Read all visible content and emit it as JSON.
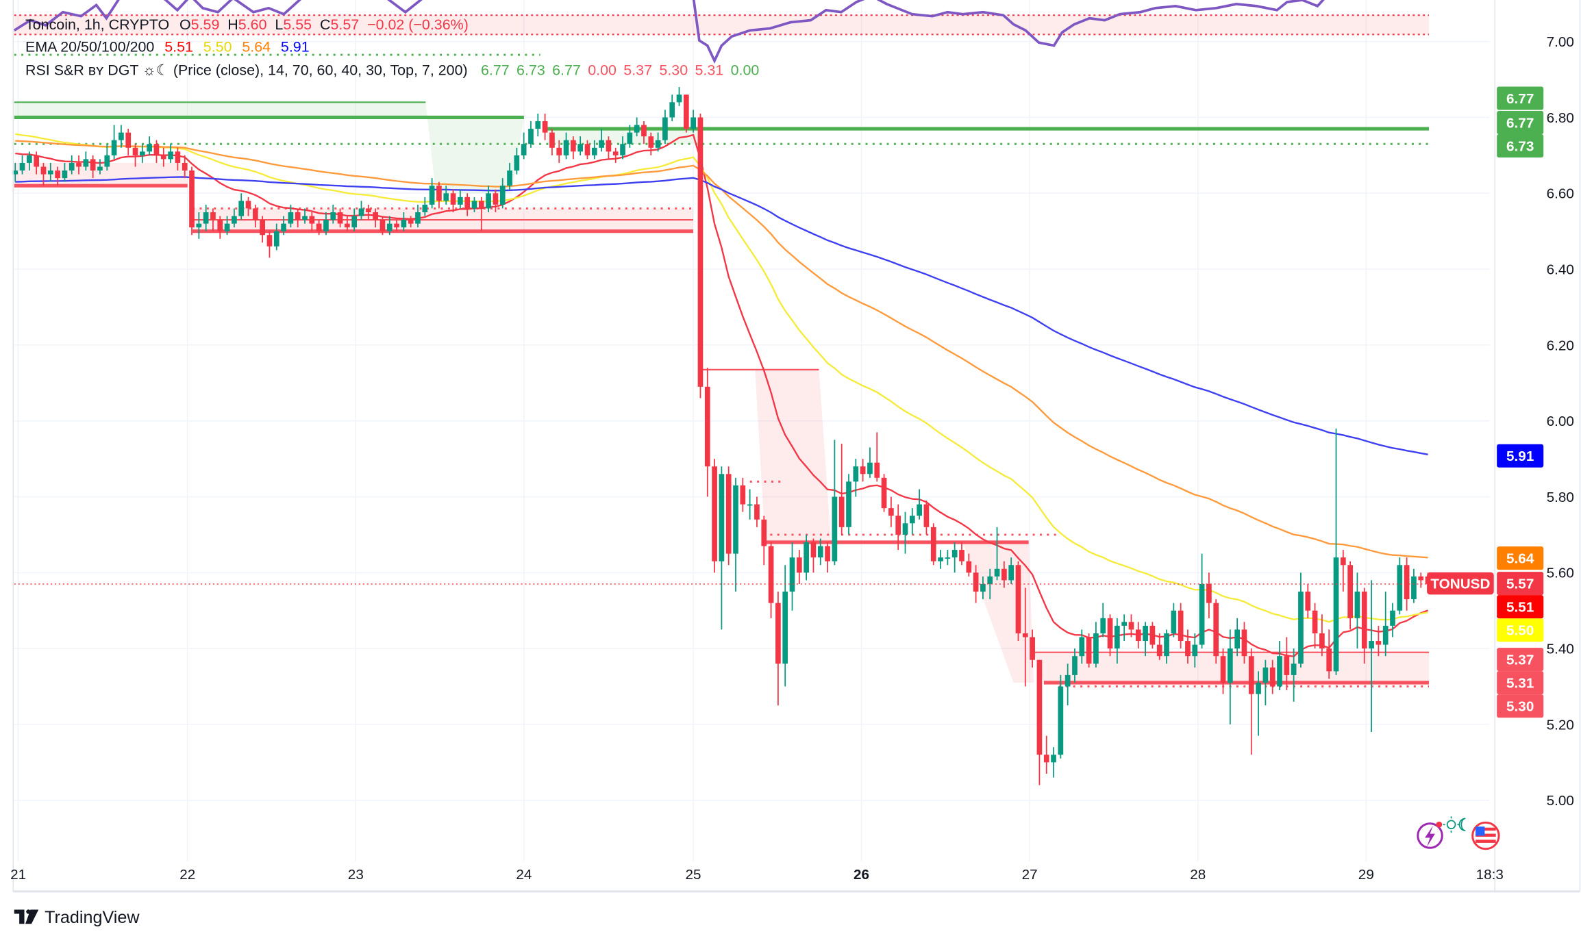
{
  "legend": {
    "symbol": "Toncoin, 1h, CRYPTO",
    "o_label": "O",
    "o": "5.59",
    "h_label": "H",
    "h": "5.60",
    "l_label": "L",
    "l": "5.55",
    "c_label": "C",
    "c": "5.57",
    "change": "−0.02 (−0.36%)"
  },
  "ema_legend": {
    "label": "EMA 20/50/100/200",
    "values": [
      {
        "v": "5.51",
        "color": "#ff0000"
      },
      {
        "v": "5.50",
        "color": "#e6d800"
      },
      {
        "v": "5.64",
        "color": "#ff7f00"
      },
      {
        "v": "5.91",
        "color": "#0000ff"
      }
    ]
  },
  "rsi_legend": {
    "label": "RSI S&R ʙʏ DGT ☼☾ (Price (close), 14, 70, 60, 40, 30, Top, 7, 200)",
    "values": [
      {
        "v": "6.77",
        "color": "#4caf50"
      },
      {
        "v": "6.73",
        "color": "#4caf50"
      },
      {
        "v": "6.77",
        "color": "#4caf50"
      },
      {
        "v": "0.00",
        "color": "#f7525f"
      },
      {
        "v": "5.37",
        "color": "#f7525f"
      },
      {
        "v": "5.30",
        "color": "#f7525f"
      },
      {
        "v": "5.31",
        "color": "#f7525f"
      },
      {
        "v": "0.00",
        "color": "#4caf50"
      }
    ]
  },
  "price_axis": {
    "ticks": [
      "7.00",
      "6.80",
      "6.60",
      "6.40",
      "6.20",
      "6.00",
      "5.80",
      "5.60",
      "5.40",
      "5.20",
      "5.00"
    ]
  },
  "badges": [
    {
      "v": "6.77",
      "bg": "#4caf50",
      "fg": "#ffffff"
    },
    {
      "v": "6.77",
      "bg": "#4caf50",
      "fg": "#ffffff"
    },
    {
      "v": "6.73",
      "bg": "#4caf50",
      "fg": "#ffffff"
    },
    {
      "v": "5.91",
      "bg": "#0000ff",
      "fg": "#ffffff"
    },
    {
      "v": "5.64",
      "bg": "#ff7f00",
      "fg": "#ffffff"
    },
    {
      "v": "5.57",
      "bg": "#f23645",
      "fg": "#ffffff"
    },
    {
      "v": "5.51",
      "bg": "#ff0000",
      "fg": "#ffffff"
    },
    {
      "v": "5.50",
      "bg": "#ffff00",
      "fg": "#131722"
    },
    {
      "v": "5.37",
      "bg": "#f7525f",
      "fg": "#ffffff"
    },
    {
      "v": "5.31",
      "bg": "#f7525f",
      "fg": "#ffffff"
    },
    {
      "v": "5.30",
      "bg": "#f7525f",
      "fg": "#ffffff"
    }
  ],
  "symbol_tag": "TONUSD",
  "time_axis": [
    "21",
    "22",
    "23",
    "24",
    "25",
    "26",
    "27",
    "28",
    "29",
    "18:3"
  ],
  "branding": "TradingView",
  "icons": [
    "lightning-icon",
    "sun-moon-icon",
    "us-flag-icon"
  ],
  "colors": {
    "up": "#089981",
    "down": "#f23645",
    "rsi": "#7e57c2",
    "support": "#f7525f",
    "resistance": "#4caf50"
  },
  "sr_levels": [
    {
      "price": 6.84,
      "color": "#4caf50",
      "style": "solid"
    },
    {
      "price": 6.8,
      "color": "#4caf50",
      "style": "thick"
    },
    {
      "price": 6.77,
      "color": "#4caf50",
      "style": "thick"
    },
    {
      "price": 6.73,
      "color": "#4caf50",
      "style": "dotted"
    },
    {
      "price": 6.965,
      "color": "#4caf50",
      "style": "dotted"
    },
    {
      "price": 6.62,
      "color": "#f7525f",
      "style": "thick"
    },
    {
      "price": 6.56,
      "color": "#f7525f",
      "style": "dotted"
    },
    {
      "price": 6.53,
      "color": "#f7525f",
      "style": "solid"
    },
    {
      "price": 6.5,
      "color": "#f7525f",
      "style": "thick"
    },
    {
      "price": 6.135,
      "color": "#f7525f",
      "style": "solid"
    },
    {
      "price": 5.84,
      "color": "#f7525f",
      "style": "dotted"
    },
    {
      "price": 5.7,
      "color": "#f7525f",
      "style": "dotted"
    },
    {
      "price": 5.68,
      "color": "#f7525f",
      "style": "thick"
    },
    {
      "price": 5.39,
      "color": "#f7525f",
      "style": "solid"
    },
    {
      "price": 5.31,
      "color": "#f7525f",
      "style": "thick"
    },
    {
      "price": 5.3,
      "color": "#f7525f",
      "style": "dotted"
    }
  ],
  "chart_data": {
    "type": "candlestick",
    "timeframe": "1h",
    "symbol": "TONUSD",
    "ylim": [
      4.85,
      7.1
    ],
    "yticks": [
      7.0,
      6.8,
      6.6,
      6.4,
      6.2,
      6.0,
      5.8,
      5.6,
      5.4,
      5.2,
      5.0
    ],
    "xticks": [
      "21",
      "22",
      "23",
      "24",
      "25",
      "26",
      "27",
      "28",
      "29",
      "18:3"
    ],
    "grid": true,
    "last_price": 5.57,
    "ema_periods": [
      20,
      50,
      100,
      200
    ],
    "ema_last": [
      5.51,
      5.5,
      5.64,
      5.91
    ],
    "candles_ohlc": [
      [
        6.65,
        6.68,
        6.63,
        6.66
      ],
      [
        6.66,
        6.7,
        6.65,
        6.68
      ],
      [
        6.68,
        6.71,
        6.66,
        6.7
      ],
      [
        6.7,
        6.71,
        6.65,
        6.67
      ],
      [
        6.67,
        6.68,
        6.62,
        6.65
      ],
      [
        6.65,
        6.68,
        6.63,
        6.66
      ],
      [
        6.66,
        6.67,
        6.62,
        6.64
      ],
      [
        6.64,
        6.68,
        6.63,
        6.66
      ],
      [
        6.66,
        6.7,
        6.65,
        6.68
      ],
      [
        6.68,
        6.7,
        6.65,
        6.67
      ],
      [
        6.67,
        6.71,
        6.66,
        6.69
      ],
      [
        6.69,
        6.7,
        6.64,
        6.66
      ],
      [
        6.66,
        6.69,
        6.65,
        6.67
      ],
      [
        6.67,
        6.73,
        6.66,
        6.7
      ],
      [
        6.7,
        6.78,
        6.69,
        6.74
      ],
      [
        6.74,
        6.78,
        6.72,
        6.76
      ],
      [
        6.76,
        6.77,
        6.7,
        6.72
      ],
      [
        6.72,
        6.73,
        6.67,
        6.7
      ],
      [
        6.7,
        6.73,
        6.68,
        6.71
      ],
      [
        6.71,
        6.75,
        6.7,
        6.73
      ],
      [
        6.73,
        6.74,
        6.68,
        6.7
      ],
      [
        6.7,
        6.72,
        6.67,
        6.69
      ],
      [
        6.69,
        6.73,
        6.68,
        6.71
      ],
      [
        6.71,
        6.72,
        6.66,
        6.68
      ],
      [
        6.68,
        6.7,
        6.64,
        6.66
      ],
      [
        6.66,
        6.67,
        6.49,
        6.51
      ],
      [
        6.51,
        6.55,
        6.48,
        6.52
      ],
      [
        6.52,
        6.57,
        6.5,
        6.55
      ],
      [
        6.55,
        6.56,
        6.5,
        6.53
      ],
      [
        6.53,
        6.54,
        6.48,
        6.5
      ],
      [
        6.5,
        6.54,
        6.49,
        6.52
      ],
      [
        6.52,
        6.56,
        6.51,
        6.54
      ],
      [
        6.54,
        6.6,
        6.53,
        6.58
      ],
      [
        6.58,
        6.59,
        6.54,
        6.56
      ],
      [
        6.56,
        6.57,
        6.51,
        6.53
      ],
      [
        6.53,
        6.54,
        6.47,
        6.49
      ],
      [
        6.49,
        6.5,
        6.43,
        6.46
      ],
      [
        6.46,
        6.52,
        6.45,
        6.5
      ],
      [
        6.5,
        6.54,
        6.49,
        6.52
      ],
      [
        6.52,
        6.57,
        6.51,
        6.55
      ],
      [
        6.55,
        6.56,
        6.51,
        6.53
      ],
      [
        6.53,
        6.56,
        6.52,
        6.54
      ],
      [
        6.54,
        6.55,
        6.5,
        6.52
      ],
      [
        6.52,
        6.53,
        6.49,
        6.5
      ],
      [
        6.5,
        6.55,
        6.49,
        6.53
      ],
      [
        6.53,
        6.57,
        6.52,
        6.55
      ],
      [
        6.55,
        6.56,
        6.51,
        6.52
      ],
      [
        6.52,
        6.54,
        6.5,
        6.51
      ],
      [
        6.51,
        6.56,
        6.5,
        6.54
      ],
      [
        6.54,
        6.58,
        6.53,
        6.56
      ],
      [
        6.56,
        6.57,
        6.53,
        6.55
      ],
      [
        6.55,
        6.56,
        6.51,
        6.53
      ],
      [
        6.53,
        6.54,
        6.49,
        6.5
      ],
      [
        6.5,
        6.54,
        6.49,
        6.52
      ],
      [
        6.52,
        6.53,
        6.5,
        6.51
      ],
      [
        6.51,
        6.55,
        6.5,
        6.53
      ],
      [
        6.53,
        6.54,
        6.51,
        6.52
      ],
      [
        6.52,
        6.57,
        6.51,
        6.55
      ],
      [
        6.55,
        6.59,
        6.54,
        6.57
      ],
      [
        6.57,
        6.64,
        6.56,
        6.62
      ],
      [
        6.62,
        6.63,
        6.56,
        6.58
      ],
      [
        6.58,
        6.62,
        6.57,
        6.6
      ],
      [
        6.6,
        6.61,
        6.55,
        6.57
      ],
      [
        6.57,
        6.61,
        6.56,
        6.59
      ],
      [
        6.59,
        6.6,
        6.54,
        6.56
      ],
      [
        6.56,
        6.59,
        6.55,
        6.58
      ],
      [
        6.58,
        6.59,
        6.5,
        6.56
      ],
      [
        6.56,
        6.62,
        6.55,
        6.6
      ],
      [
        6.6,
        6.61,
        6.55,
        6.57
      ],
      [
        6.57,
        6.64,
        6.56,
        6.62
      ],
      [
        6.62,
        6.68,
        6.61,
        6.66
      ],
      [
        6.66,
        6.72,
        6.65,
        6.7
      ],
      [
        6.7,
        6.76,
        6.69,
        6.73
      ],
      [
        6.73,
        6.79,
        6.72,
        6.77
      ],
      [
        6.77,
        6.81,
        6.75,
        6.79
      ],
      [
        6.79,
        6.81,
        6.74,
        6.76
      ],
      [
        6.76,
        6.77,
        6.7,
        6.72
      ],
      [
        6.72,
        6.74,
        6.68,
        6.7
      ],
      [
        6.7,
        6.76,
        6.69,
        6.74
      ],
      [
        6.74,
        6.75,
        6.69,
        6.71
      ],
      [
        6.71,
        6.75,
        6.7,
        6.73
      ],
      [
        6.73,
        6.74,
        6.69,
        6.7
      ],
      [
        6.7,
        6.74,
        6.69,
        6.72
      ],
      [
        6.72,
        6.77,
        6.71,
        6.74
      ],
      [
        6.74,
        6.75,
        6.69,
        6.71
      ],
      [
        6.71,
        6.72,
        6.68,
        6.7
      ],
      [
        6.7,
        6.75,
        6.69,
        6.73
      ],
      [
        6.73,
        6.78,
        6.72,
        6.76
      ],
      [
        6.76,
        6.8,
        6.75,
        6.78
      ],
      [
        6.78,
        6.79,
        6.73,
        6.75
      ],
      [
        6.75,
        6.76,
        6.7,
        6.72
      ],
      [
        6.72,
        6.76,
        6.71,
        6.74
      ],
      [
        6.74,
        6.82,
        6.73,
        6.8
      ],
      [
        6.8,
        6.86,
        6.79,
        6.84
      ],
      [
        6.84,
        6.88,
        6.83,
        6.86
      ],
      [
        6.86,
        6.86,
        6.76,
        6.77
      ],
      [
        6.77,
        6.82,
        6.76,
        6.8
      ],
      [
        6.8,
        6.81,
        6.06,
        6.09
      ],
      [
        6.09,
        6.14,
        5.8,
        5.88
      ],
      [
        5.88,
        5.9,
        5.6,
        5.63
      ],
      [
        5.63,
        5.88,
        5.45,
        5.86
      ],
      [
        5.86,
        5.88,
        5.62,
        5.65
      ],
      [
        5.65,
        5.85,
        5.55,
        5.83
      ],
      [
        5.83,
        5.85,
        5.76,
        5.78
      ],
      [
        5.78,
        5.82,
        5.74,
        5.78
      ],
      [
        5.78,
        5.8,
        5.72,
        5.74
      ],
      [
        5.74,
        5.75,
        5.62,
        5.67
      ],
      [
        5.67,
        5.68,
        5.48,
        5.52
      ],
      [
        5.52,
        5.55,
        5.25,
        5.36
      ],
      [
        5.36,
        5.62,
        5.3,
        5.55
      ],
      [
        5.55,
        5.68,
        5.5,
        5.64
      ],
      [
        5.64,
        5.66,
        5.57,
        5.6
      ],
      [
        5.6,
        5.7,
        5.58,
        5.68
      ],
      [
        5.68,
        5.69,
        5.6,
        5.64
      ],
      [
        5.64,
        5.69,
        5.62,
        5.67
      ],
      [
        5.67,
        5.68,
        5.6,
        5.63
      ],
      [
        5.63,
        5.95,
        5.62,
        5.8
      ],
      [
        5.8,
        5.94,
        5.7,
        5.72
      ],
      [
        5.72,
        5.86,
        5.7,
        5.84
      ],
      [
        5.84,
        5.9,
        5.8,
        5.88
      ],
      [
        5.88,
        5.9,
        5.84,
        5.86
      ],
      [
        5.86,
        5.93,
        5.85,
        5.89
      ],
      [
        5.89,
        5.97,
        5.84,
        5.85
      ],
      [
        5.85,
        5.86,
        5.76,
        5.77
      ],
      [
        5.77,
        5.8,
        5.72,
        5.75
      ],
      [
        5.75,
        5.78,
        5.66,
        5.7
      ],
      [
        5.7,
        5.76,
        5.65,
        5.73
      ],
      [
        5.73,
        5.77,
        5.7,
        5.75
      ],
      [
        5.75,
        5.82,
        5.74,
        5.78
      ],
      [
        5.78,
        5.79,
        5.7,
        5.72
      ],
      [
        5.72,
        5.73,
        5.62,
        5.63
      ],
      [
        5.63,
        5.66,
        5.61,
        5.64
      ],
      [
        5.64,
        5.66,
        5.62,
        5.64
      ],
      [
        5.64,
        5.68,
        5.6,
        5.66
      ],
      [
        5.66,
        5.68,
        5.62,
        5.63
      ],
      [
        5.63,
        5.65,
        5.59,
        5.6
      ],
      [
        5.6,
        5.62,
        5.52,
        5.55
      ],
      [
        5.55,
        5.59,
        5.53,
        5.57
      ],
      [
        5.57,
        5.61,
        5.53,
        5.59
      ],
      [
        5.59,
        5.72,
        5.58,
        5.61
      ],
      [
        5.61,
        5.63,
        5.56,
        5.58
      ],
      [
        5.58,
        5.64,
        5.57,
        5.62
      ],
      [
        5.62,
        5.63,
        5.42,
        5.44
      ],
      [
        5.44,
        5.56,
        5.3,
        5.43
      ],
      [
        5.43,
        5.45,
        5.35,
        5.37
      ],
      [
        5.37,
        5.37,
        5.04,
        5.12
      ],
      [
        5.12,
        5.17,
        5.07,
        5.1
      ],
      [
        5.1,
        5.14,
        5.06,
        5.12
      ],
      [
        5.12,
        5.33,
        5.11,
        5.3
      ],
      [
        5.3,
        5.36,
        5.25,
        5.33
      ],
      [
        5.33,
        5.4,
        5.31,
        5.38
      ],
      [
        5.38,
        5.45,
        5.36,
        5.43
      ],
      [
        5.43,
        5.44,
        5.35,
        5.36
      ],
      [
        5.36,
        5.47,
        5.35,
        5.44
      ],
      [
        5.44,
        5.52,
        5.43,
        5.48
      ],
      [
        5.48,
        5.49,
        5.38,
        5.4
      ],
      [
        5.4,
        5.48,
        5.36,
        5.46
      ],
      [
        5.46,
        5.49,
        5.42,
        5.47
      ],
      [
        5.47,
        5.49,
        5.43,
        5.45
      ],
      [
        5.45,
        5.47,
        5.4,
        5.42
      ],
      [
        5.42,
        5.47,
        5.38,
        5.46
      ],
      [
        5.46,
        5.47,
        5.4,
        5.41
      ],
      [
        5.41,
        5.44,
        5.37,
        5.38
      ],
      [
        5.38,
        5.45,
        5.36,
        5.44
      ],
      [
        5.44,
        5.52,
        5.43,
        5.5
      ],
      [
        5.5,
        5.52,
        5.4,
        5.42
      ],
      [
        5.42,
        5.45,
        5.36,
        5.38
      ],
      [
        5.38,
        5.44,
        5.35,
        5.41
      ],
      [
        5.41,
        5.65,
        5.4,
        5.57
      ],
      [
        5.57,
        5.6,
        5.48,
        5.52
      ],
      [
        5.52,
        5.53,
        5.36,
        5.38
      ],
      [
        5.38,
        5.4,
        5.28,
        5.31
      ],
      [
        5.31,
        5.45,
        5.2,
        5.4
      ],
      [
        5.4,
        5.48,
        5.38,
        5.45
      ],
      [
        5.45,
        5.47,
        5.36,
        5.38
      ],
      [
        5.38,
        5.4,
        5.12,
        5.28
      ],
      [
        5.28,
        5.34,
        5.17,
        5.31
      ],
      [
        5.31,
        5.37,
        5.25,
        5.35
      ],
      [
        5.35,
        5.37,
        5.28,
        5.3
      ],
      [
        5.3,
        5.42,
        5.29,
        5.38
      ],
      [
        5.38,
        5.43,
        5.29,
        5.33
      ],
      [
        5.33,
        5.4,
        5.26,
        5.36
      ],
      [
        5.36,
        5.6,
        5.35,
        5.55
      ],
      [
        5.55,
        5.57,
        5.48,
        5.5
      ],
      [
        5.5,
        5.52,
        5.4,
        5.44
      ],
      [
        5.44,
        5.49,
        5.38,
        5.4
      ],
      [
        5.4,
        5.45,
        5.32,
        5.34
      ],
      [
        5.34,
        5.98,
        5.33,
        5.64
      ],
      [
        5.64,
        5.66,
        5.55,
        5.62
      ],
      [
        5.62,
        5.63,
        5.45,
        5.48
      ],
      [
        5.48,
        5.6,
        5.4,
        5.55
      ],
      [
        5.55,
        5.56,
        5.36,
        5.4
      ],
      [
        5.4,
        5.58,
        5.18,
        5.42
      ],
      [
        5.42,
        5.46,
        5.38,
        5.41
      ],
      [
        5.41,
        5.55,
        5.38,
        5.46
      ],
      [
        5.46,
        5.52,
        5.43,
        5.5
      ],
      [
        5.5,
        5.64,
        5.49,
        5.62
      ],
      [
        5.62,
        5.64,
        5.5,
        5.53
      ],
      [
        5.53,
        5.61,
        5.52,
        5.59
      ],
      [
        5.59,
        5.6,
        5.56,
        5.58
      ],
      [
        5.59,
        5.6,
        5.55,
        5.57
      ]
    ]
  }
}
